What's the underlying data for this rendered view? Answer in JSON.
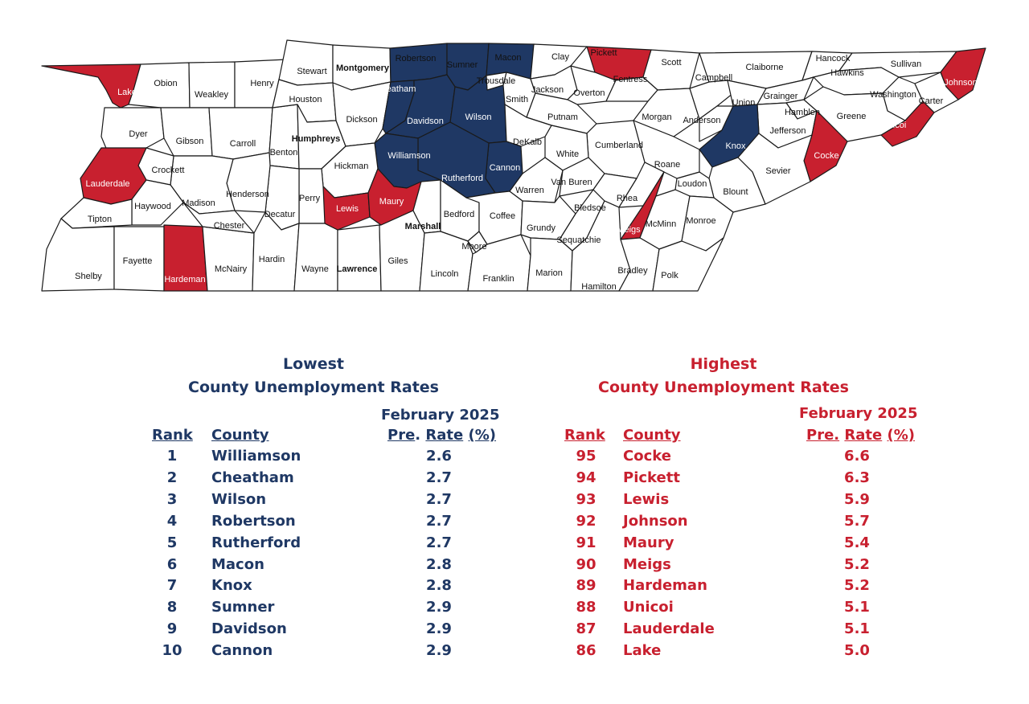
{
  "colors": {
    "lowest": "#1f3864",
    "highest": "#c8202f",
    "neutral": "#ffffff",
    "border": "#1a1a1a"
  },
  "map": {
    "counties": [
      {
        "name": "Lake",
        "status": "highest"
      },
      {
        "name": "Obion",
        "status": "neutral"
      },
      {
        "name": "Weakley",
        "status": "neutral"
      },
      {
        "name": "Henry",
        "status": "neutral"
      },
      {
        "name": "Stewart",
        "status": "neutral"
      },
      {
        "name": "Montgomery",
        "status": "neutral"
      },
      {
        "name": "Robertson",
        "status": "lowest"
      },
      {
        "name": "Sumner",
        "status": "lowest"
      },
      {
        "name": "Macon",
        "status": "lowest"
      },
      {
        "name": "Clay",
        "status": "neutral"
      },
      {
        "name": "Pickett",
        "status": "highest"
      },
      {
        "name": "Scott",
        "status": "neutral"
      },
      {
        "name": "Claiborne",
        "status": "neutral"
      },
      {
        "name": "Hancock",
        "status": "neutral"
      },
      {
        "name": "Sullivan",
        "status": "neutral"
      },
      {
        "name": "Johnson",
        "status": "highest"
      },
      {
        "name": "Hawkins",
        "status": "neutral"
      },
      {
        "name": "Dyer",
        "status": "neutral"
      },
      {
        "name": "Gibson",
        "status": "neutral"
      },
      {
        "name": "Carroll",
        "status": "neutral"
      },
      {
        "name": "Benton",
        "status": "neutral"
      },
      {
        "name": "Houston",
        "status": "neutral"
      },
      {
        "name": "Humphreys",
        "status": "neutral"
      },
      {
        "name": "Dickson",
        "status": "neutral"
      },
      {
        "name": "Cheatham",
        "status": "lowest"
      },
      {
        "name": "Davidson",
        "status": "lowest"
      },
      {
        "name": "Wilson",
        "status": "lowest"
      },
      {
        "name": "Trousdale",
        "status": "neutral"
      },
      {
        "name": "Smith",
        "status": "neutral"
      },
      {
        "name": "Jackson",
        "status": "neutral"
      },
      {
        "name": "Overton",
        "status": "neutral"
      },
      {
        "name": "Fentress",
        "status": "neutral"
      },
      {
        "name": "Putnam",
        "status": "neutral"
      },
      {
        "name": "Morgan",
        "status": "neutral"
      },
      {
        "name": "Campbell",
        "status": "neutral"
      },
      {
        "name": "Union",
        "status": "neutral"
      },
      {
        "name": "Anderson",
        "status": "neutral"
      },
      {
        "name": "Grainger",
        "status": "neutral"
      },
      {
        "name": "Hamblen",
        "status": "neutral"
      },
      {
        "name": "Jefferson",
        "status": "neutral"
      },
      {
        "name": "Washington",
        "status": "neutral"
      },
      {
        "name": "Carter",
        "status": "neutral"
      },
      {
        "name": "Unicoi",
        "status": "highest"
      },
      {
        "name": "Greene",
        "status": "neutral"
      },
      {
        "name": "Cocke",
        "status": "highest"
      },
      {
        "name": "Knox",
        "status": "lowest"
      },
      {
        "name": "Sevier",
        "status": "neutral"
      },
      {
        "name": "Blount",
        "status": "neutral"
      },
      {
        "name": "Loudon",
        "status": "neutral"
      },
      {
        "name": "Roane",
        "status": "neutral"
      },
      {
        "name": "Cumberland",
        "status": "neutral"
      },
      {
        "name": "White",
        "status": "neutral"
      },
      {
        "name": "DeKalb",
        "status": "neutral"
      },
      {
        "name": "Cannon",
        "status": "lowest"
      },
      {
        "name": "Rutherford",
        "status": "lowest"
      },
      {
        "name": "Williamson",
        "status": "lowest"
      },
      {
        "name": "Hickman",
        "status": "neutral"
      },
      {
        "name": "Perry",
        "status": "neutral"
      },
      {
        "name": "Decatur",
        "status": "neutral"
      },
      {
        "name": "Henderson",
        "status": "neutral"
      },
      {
        "name": "Madison",
        "status": "neutral"
      },
      {
        "name": "Crockett",
        "status": "neutral"
      },
      {
        "name": "Lauderdale",
        "status": "highest"
      },
      {
        "name": "Haywood",
        "status": "neutral"
      },
      {
        "name": "Tipton",
        "status": "neutral"
      },
      {
        "name": "Shelby",
        "status": "neutral"
      },
      {
        "name": "Fayette",
        "status": "neutral"
      },
      {
        "name": "Hardeman",
        "status": "highest"
      },
      {
        "name": "McNairy",
        "status": "neutral"
      },
      {
        "name": "Chester",
        "status": "neutral"
      },
      {
        "name": "Hardin",
        "status": "neutral"
      },
      {
        "name": "Wayne",
        "status": "neutral"
      },
      {
        "name": "Lawrence",
        "status": "neutral"
      },
      {
        "name": "Lewis",
        "status": "highest"
      },
      {
        "name": "Maury",
        "status": "highest"
      },
      {
        "name": "Giles",
        "status": "neutral"
      },
      {
        "name": "Marshall",
        "status": "neutral"
      },
      {
        "name": "Bedford",
        "status": "neutral"
      },
      {
        "name": "Lincoln",
        "status": "neutral"
      },
      {
        "name": "Moore",
        "status": "neutral"
      },
      {
        "name": "Coffee",
        "status": "neutral"
      },
      {
        "name": "Franklin",
        "status": "neutral"
      },
      {
        "name": "Warren",
        "status": "neutral"
      },
      {
        "name": "Van Buren",
        "status": "neutral"
      },
      {
        "name": "Grundy",
        "status": "neutral"
      },
      {
        "name": "Marion",
        "status": "neutral"
      },
      {
        "name": "Sequatchie",
        "status": "neutral"
      },
      {
        "name": "Bledsoe",
        "status": "neutral"
      },
      {
        "name": "Rhea",
        "status": "neutral"
      },
      {
        "name": "Meigs",
        "status": "highest"
      },
      {
        "name": "McMinn",
        "status": "neutral"
      },
      {
        "name": "Monroe",
        "status": "neutral"
      },
      {
        "name": "Hamilton",
        "status": "neutral"
      },
      {
        "name": "Bradley",
        "status": "neutral"
      },
      {
        "name": "Polk",
        "status": "neutral"
      }
    ]
  },
  "lowest": {
    "title_line1": "Lowest",
    "title_line2": "County Unemployment Rates",
    "period": "February  2025",
    "col_rank": "Rank",
    "col_county": "County",
    "col_pre": "Pre",
    "col_dot": ".",
    "col_rate": "Rate",
    "col_pct": "(%)",
    "rows": [
      {
        "rank": "1",
        "county": "Williamson",
        "rate": "2.6"
      },
      {
        "rank": "2",
        "county": "Cheatham",
        "rate": "2.7"
      },
      {
        "rank": "3",
        "county": "Wilson",
        "rate": "2.7"
      },
      {
        "rank": "4",
        "county": "Robertson",
        "rate": "2.7"
      },
      {
        "rank": "5",
        "county": "Rutherford",
        "rate": "2.7"
      },
      {
        "rank": "6",
        "county": "Macon",
        "rate": "2.8"
      },
      {
        "rank": "7",
        "county": "Knox",
        "rate": "2.8"
      },
      {
        "rank": "8",
        "county": "Sumner",
        "rate": "2.9"
      },
      {
        "rank": "9",
        "county": "Davidson",
        "rate": "2.9"
      },
      {
        "rank": "10",
        "county": "Cannon",
        "rate": "2.9"
      }
    ]
  },
  "highest": {
    "title_line1": "Highest",
    "title_line2": "County Unemployment Rates",
    "period": "February  2025",
    "col_rank": "Rank",
    "col_county": "County",
    "col_pre": "Pre.",
    "col_rate": "Rate",
    "col_pct": "(%)",
    "rows": [
      {
        "rank": "95",
        "county": "Cocke",
        "rate": "6.6"
      },
      {
        "rank": "94",
        "county": "Pickett",
        "rate": "6.3"
      },
      {
        "rank": "93",
        "county": "Lewis",
        "rate": "5.9"
      },
      {
        "rank": "92",
        "county": "Johnson",
        "rate": "5.7"
      },
      {
        "rank": "91",
        "county": "Maury",
        "rate": "5.4"
      },
      {
        "rank": "90",
        "county": "Meigs",
        "rate": "5.2"
      },
      {
        "rank": "89",
        "county": "Hardeman",
        "rate": "5.2"
      },
      {
        "rank": "88",
        "county": "Unicoi",
        "rate": "5.1"
      },
      {
        "rank": "87",
        "county": "Lauderdale",
        "rate": "5.1"
      },
      {
        "rank": "86",
        "county": "Lake",
        "rate": "5.0"
      }
    ]
  }
}
